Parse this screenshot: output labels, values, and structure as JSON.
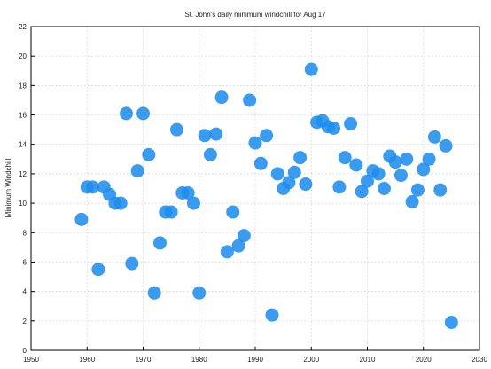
{
  "chart_data": {
    "type": "scatter",
    "title": "St. John's daily minimum windchill for Aug 17",
    "xlabel": "",
    "ylabel": "Minimum Windchill",
    "xlim": [
      1950,
      2030
    ],
    "ylim": [
      0,
      22
    ],
    "xticks": [
      1950,
      1960,
      1970,
      1980,
      1990,
      2000,
      2010,
      2020,
      2030
    ],
    "yticks": [
      0,
      2,
      4,
      6,
      8,
      10,
      12,
      14,
      16,
      18,
      20,
      22
    ],
    "grid": true,
    "legend": "none",
    "marker_color": "#1f8ded",
    "series": [
      {
        "points": [
          [
            1959,
            8.9
          ],
          [
            1960,
            11.1
          ],
          [
            1961,
            11.1
          ],
          [
            1962,
            5.5
          ],
          [
            1963,
            11.1
          ],
          [
            1964,
            10.6
          ],
          [
            1965,
            10.0
          ],
          [
            1966,
            10.0
          ],
          [
            1967,
            16.1
          ],
          [
            1968,
            5.9
          ],
          [
            1969,
            12.2
          ],
          [
            1970,
            16.1
          ],
          [
            1971,
            13.3
          ],
          [
            1972,
            3.9
          ],
          [
            1973,
            7.3
          ],
          [
            1974,
            9.4
          ],
          [
            1975,
            9.4
          ],
          [
            1976,
            15.0
          ],
          [
            1977,
            10.7
          ],
          [
            1978,
            10.7
          ],
          [
            1979,
            10.0
          ],
          [
            1980,
            3.9
          ],
          [
            1981,
            14.6
          ],
          [
            1982,
            13.3
          ],
          [
            1983,
            14.7
          ],
          [
            1984,
            17.2
          ],
          [
            1985,
            6.7
          ],
          [
            1986,
            9.4
          ],
          [
            1987,
            7.1
          ],
          [
            1988,
            7.8
          ],
          [
            1989,
            17.0
          ],
          [
            1990,
            14.1
          ],
          [
            1991,
            12.7
          ],
          [
            1992,
            14.6
          ],
          [
            1993,
            2.4
          ],
          [
            1994,
            12.0
          ],
          [
            1995,
            11.0
          ],
          [
            1996,
            11.4
          ],
          [
            1997,
            12.1
          ],
          [
            1998,
            13.1
          ],
          [
            1999,
            11.3
          ],
          [
            2000,
            19.1
          ],
          [
            2001,
            15.5
          ],
          [
            2002,
            15.6
          ],
          [
            2003,
            15.2
          ],
          [
            2004,
            15.1
          ],
          [
            2005,
            11.1
          ],
          [
            2006,
            13.1
          ],
          [
            2007,
            15.4
          ],
          [
            2008,
            12.6
          ],
          [
            2009,
            10.8
          ],
          [
            2010,
            11.5
          ],
          [
            2011,
            12.2
          ],
          [
            2012,
            12.0
          ],
          [
            2013,
            11.0
          ],
          [
            2014,
            13.2
          ],
          [
            2015,
            12.8
          ],
          [
            2016,
            11.9
          ],
          [
            2017,
            13.0
          ],
          [
            2018,
            10.1
          ],
          [
            2019,
            10.9
          ],
          [
            2020,
            12.3
          ],
          [
            2021,
            13.0
          ],
          [
            2022,
            14.5
          ],
          [
            2023,
            10.9
          ],
          [
            2024,
            13.9
          ],
          [
            2025,
            1.9
          ]
        ]
      }
    ]
  }
}
